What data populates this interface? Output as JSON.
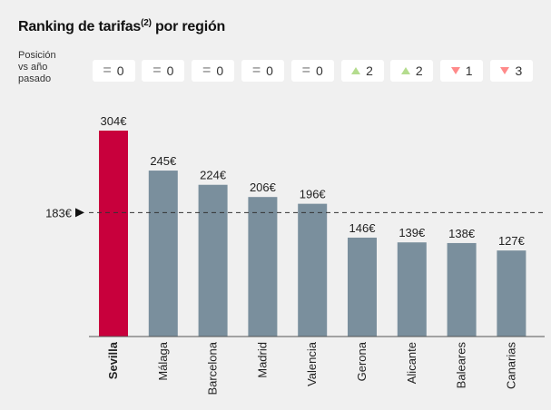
{
  "header": {
    "title_main": "Ranking de tarifas",
    "title_sup": "(2)",
    "title_end": " por región"
  },
  "position_label": {
    "line1": "Posición",
    "line2": "vs año",
    "line3": "pasado"
  },
  "position_badges": [
    {
      "type": "equal",
      "value": "0"
    },
    {
      "type": "equal",
      "value": "0"
    },
    {
      "type": "equal",
      "value": "0"
    },
    {
      "type": "equal",
      "value": "0"
    },
    {
      "type": "equal",
      "value": "0"
    },
    {
      "type": "up",
      "value": "2"
    },
    {
      "type": "up",
      "value": "2"
    },
    {
      "type": "down",
      "value": "1"
    },
    {
      "type": "down",
      "value": "3"
    }
  ],
  "chart_data": {
    "type": "bar",
    "categories": [
      "Sevilla",
      "Málaga",
      "Barcelona",
      "Madrid",
      "Valencia",
      "Gerona",
      "Alicante",
      "Baleares",
      "Canarias"
    ],
    "values": [
      304,
      245,
      224,
      206,
      196,
      146,
      139,
      138,
      127
    ],
    "value_labels": [
      "304€",
      "245€",
      "224€",
      "206€",
      "196€",
      "146€",
      "139€",
      "138€",
      "127€"
    ],
    "highlight_index": 0,
    "reference_value": 183,
    "reference_label": "183€",
    "ylim": [
      0,
      304
    ],
    "grid": false,
    "legend": "none"
  },
  "colors": {
    "highlight": "#c8003c",
    "bar": "#7a8f9d",
    "up": "#b4dc8e",
    "down": "#ff8a8a",
    "background": "#f0f0f0"
  }
}
